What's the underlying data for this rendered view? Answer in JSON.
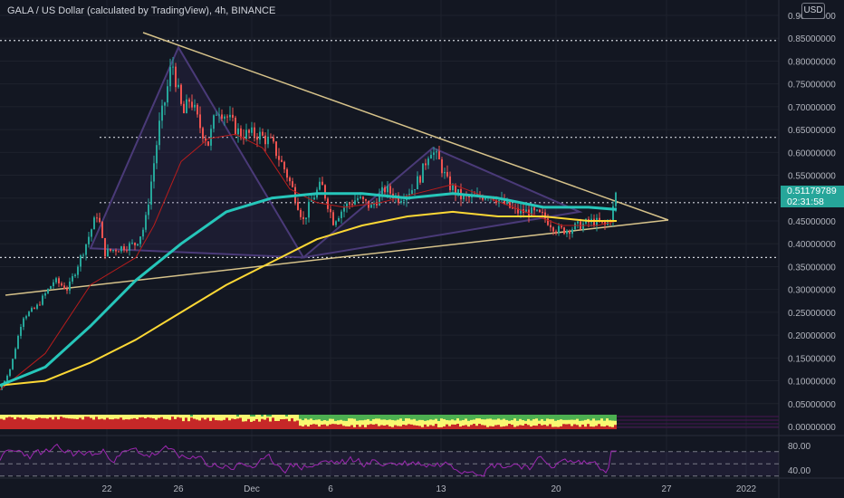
{
  "header": {
    "title": "GALA / US Dollar (calculated by TradingView), 4h, BINANCE",
    "currency": "USD"
  },
  "last_price": {
    "value": "0.51179789",
    "countdown": "02:31:58"
  },
  "colors": {
    "background": "#131722",
    "candle_up": "#26a69a",
    "candle_down": "#ef5350",
    "ma_fast": "#26c6ba",
    "ma_slow": "#fdd835",
    "ma_red": "#b71c1c",
    "pattern": "#4a3a78",
    "trendline": "#d6c28a",
    "rsi": "#9c27b0"
  },
  "chart_data": {
    "type": "candlestick",
    "symbol": "GALA/USD",
    "timeframe": "4h",
    "y_axis": {
      "ticks": [
        "0.90000000",
        "0.85000000",
        "0.80000000",
        "0.75000000",
        "0.70000000",
        "0.65000000",
        "0.60000000",
        "0.55000000",
        "0.50000000",
        "0.45000000",
        "0.40000000",
        "0.35000000",
        "0.30000000",
        "0.25000000",
        "0.20000000",
        "0.15000000",
        "0.10000000",
        "0.05000000",
        "0.00000000"
      ],
      "range": [
        0.0,
        0.9
      ]
    },
    "x_axis": {
      "ticks": [
        "22",
        "26",
        "Dec",
        "6",
        "13",
        "20",
        "27",
        "2022"
      ]
    },
    "levels": [
      0.845,
      0.633,
      0.49,
      0.37
    ],
    "trendlines": [
      {
        "from": [
          "Nov 25",
          0.86
        ],
        "to": [
          "Dec 27",
          0.445
        ]
      },
      {
        "from": [
          "Nov 16",
          0.29
        ],
        "to": [
          "Dec 27",
          0.445
        ]
      }
    ],
    "harmonic_pattern": {
      "points": [
        [
          "Nov 22",
          0.39
        ],
        [
          "Nov 26",
          0.83
        ],
        [
          "Dec 4",
          0.37
        ],
        [
          "Dec 12",
          0.61
        ],
        [
          "Dec 23",
          0.47
        ]
      ]
    },
    "close_path": [
      [
        0,
        0.08
      ],
      [
        12,
        0.13
      ],
      [
        25,
        0.24
      ],
      [
        40,
        0.26
      ],
      [
        60,
        0.32
      ],
      [
        75,
        0.3
      ],
      [
        95,
        0.4
      ],
      [
        108,
        0.47
      ],
      [
        115,
        0.38
      ],
      [
        130,
        0.39
      ],
      [
        150,
        0.4
      ],
      [
        160,
        0.44
      ],
      [
        168,
        0.55
      ],
      [
        176,
        0.66
      ],
      [
        183,
        0.72
      ],
      [
        190,
        0.8
      ],
      [
        196,
        0.74
      ],
      [
        202,
        0.68
      ],
      [
        210,
        0.72
      ],
      [
        220,
        0.66
      ],
      [
        230,
        0.62
      ],
      [
        240,
        0.7
      ],
      [
        250,
        0.68
      ],
      [
        265,
        0.64
      ],
      [
        285,
        0.64
      ],
      [
        300,
        0.62
      ],
      [
        315,
        0.56
      ],
      [
        325,
        0.51
      ],
      [
        335,
        0.45
      ],
      [
        345,
        0.5
      ],
      [
        355,
        0.53
      ],
      [
        368,
        0.45
      ],
      [
        380,
        0.48
      ],
      [
        395,
        0.5
      ],
      [
        410,
        0.48
      ],
      [
        425,
        0.52
      ],
      [
        440,
        0.5
      ],
      [
        455,
        0.52
      ],
      [
        465,
        0.55
      ],
      [
        475,
        0.61
      ],
      [
        485,
        0.58
      ],
      [
        495,
        0.53
      ],
      [
        510,
        0.5
      ],
      [
        525,
        0.5
      ],
      [
        540,
        0.51
      ],
      [
        555,
        0.49
      ],
      [
        570,
        0.47
      ],
      [
        585,
        0.47
      ],
      [
        600,
        0.46
      ],
      [
        615,
        0.43
      ],
      [
        625,
        0.43
      ],
      [
        640,
        0.44
      ],
      [
        655,
        0.45
      ],
      [
        668,
        0.44
      ],
      [
        675,
        0.46
      ],
      [
        681,
        0.512
      ]
    ],
    "ma_fast_path": [
      [
        0,
        0.09
      ],
      [
        50,
        0.13
      ],
      [
        100,
        0.22
      ],
      [
        150,
        0.32
      ],
      [
        200,
        0.4
      ],
      [
        250,
        0.47
      ],
      [
        300,
        0.5
      ],
      [
        350,
        0.51
      ],
      [
        400,
        0.51
      ],
      [
        450,
        0.5
      ],
      [
        500,
        0.51
      ],
      [
        550,
        0.5
      ],
      [
        600,
        0.48
      ],
      [
        650,
        0.48
      ],
      [
        681,
        0.475
      ]
    ],
    "ma_slow_path": [
      [
        0,
        0.09
      ],
      [
        50,
        0.1
      ],
      [
        100,
        0.14
      ],
      [
        150,
        0.19
      ],
      [
        200,
        0.25
      ],
      [
        250,
        0.31
      ],
      [
        300,
        0.36
      ],
      [
        350,
        0.41
      ],
      [
        400,
        0.44
      ],
      [
        450,
        0.46
      ],
      [
        500,
        0.47
      ],
      [
        550,
        0.46
      ],
      [
        600,
        0.46
      ],
      [
        650,
        0.45
      ],
      [
        681,
        0.45
      ]
    ],
    "ma_red_path": [
      [
        0,
        0.08
      ],
      [
        50,
        0.16
      ],
      [
        100,
        0.31
      ],
      [
        150,
        0.37
      ],
      [
        170,
        0.44
      ],
      [
        200,
        0.58
      ],
      [
        230,
        0.63
      ],
      [
        260,
        0.64
      ],
      [
        290,
        0.61
      ],
      [
        320,
        0.52
      ],
      [
        350,
        0.49
      ],
      [
        380,
        0.48
      ],
      [
        420,
        0.49
      ],
      [
        460,
        0.51
      ],
      [
        500,
        0.53
      ],
      [
        540,
        0.5
      ],
      [
        580,
        0.47
      ],
      [
        620,
        0.44
      ],
      [
        660,
        0.44
      ],
      [
        681,
        0.45
      ]
    ],
    "rsi": {
      "ticks": [
        "80.00",
        "40.00"
      ],
      "levels": [
        70,
        50,
        30
      ],
      "range": [
        20,
        90
      ]
    }
  }
}
